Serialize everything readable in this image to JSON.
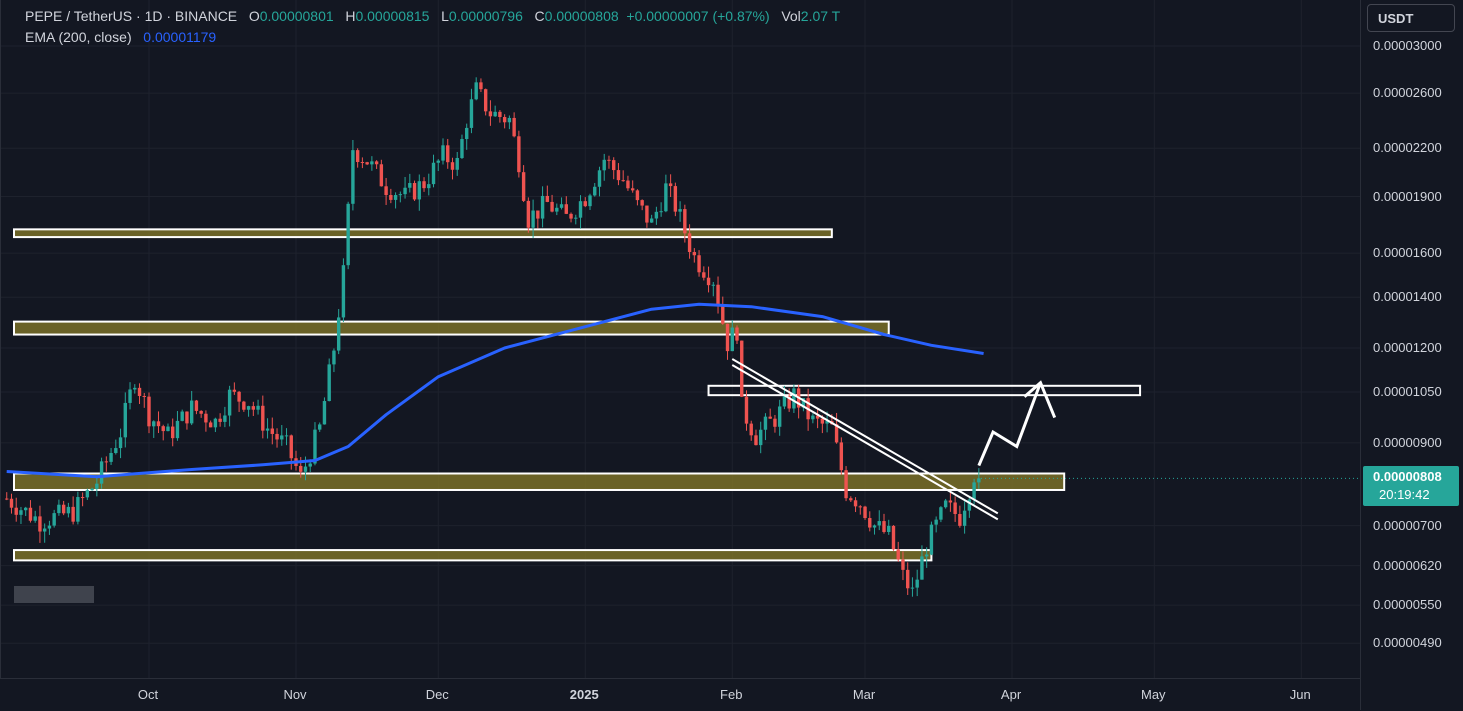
{
  "legend": {
    "symbol": "PEPE / TetherUS · 1D · BINANCE",
    "open_label": "O",
    "open": "0.00000801",
    "high_label": "H",
    "high": "0.00000815",
    "low_label": "L",
    "low": "0.00000796",
    "close_label": "C",
    "close": "0.00000808",
    "change": "+0.00000007 (+0.87%)",
    "vol_label": "Vol",
    "vol": "2.07 T",
    "ema_label": "EMA (200, close)",
    "ema_value": "0.00001179"
  },
  "currency_button": "USDT",
  "price_badge": {
    "price": "0.00000808",
    "countdown": "20:19:42"
  },
  "colors": {
    "background": "#131722",
    "up": "#26a69a",
    "down": "#ef5350",
    "ema": "#2962ff",
    "zone_fill": "#7a7028",
    "zone_border": "#ffffff"
  },
  "chart_data": {
    "type": "candlestick",
    "y_scale": "log",
    "ylim": [
      4.3e-06,
      3.1e-06
    ],
    "y_ticks": [
      "0.00003000",
      "0.00002600",
      "0.00002200",
      "0.00001900",
      "0.00001600",
      "0.00001400",
      "0.00001200",
      "0.00001050",
      "0.00000900",
      "0.00000700",
      "0.00000620",
      "0.00000550",
      "0.00000490"
    ],
    "x_ticks": [
      {
        "label": "Oct",
        "date": "2024-10-01"
      },
      {
        "label": "Nov",
        "date": "2024-11-01"
      },
      {
        "label": "Dec",
        "date": "2024-12-01"
      },
      {
        "label": "2025",
        "date": "2025-01-01",
        "bold": true
      },
      {
        "label": "Feb",
        "date": "2025-02-01"
      },
      {
        "label": "Mar",
        "date": "2025-03-01"
      },
      {
        "label": "Apr",
        "date": "2025-04-01"
      },
      {
        "label": "May",
        "date": "2025-05-01"
      },
      {
        "label": "Jun",
        "date": "2025-06-01"
      }
    ],
    "x_range": [
      "2024-09-01",
      "2025-06-10"
    ],
    "close_path": [
      [
        "2024-09-01",
        7.6e-06
      ],
      [
        "2024-09-08",
        7.1e-06
      ],
      [
        "2024-09-15",
        7.3e-06
      ],
      [
        "2024-09-20",
        8e-06
      ],
      [
        "2024-09-25",
        9.3e-06
      ],
      [
        "2024-09-28",
        1.1e-05
      ],
      [
        "2024-10-01",
        9.8e-06
      ],
      [
        "2024-10-05",
        9.2e-06
      ],
      [
        "2024-10-10",
        1e-05
      ],
      [
        "2024-10-15",
        9.6e-06
      ],
      [
        "2024-10-18",
        1.04e-05
      ],
      [
        "2024-10-22",
        1.02e-05
      ],
      [
        "2024-10-26",
        9.4e-06
      ],
      [
        "2024-10-30",
        8.9e-06
      ],
      [
        "2024-11-02",
        8.1e-06
      ],
      [
        "2024-11-06",
        9.4e-06
      ],
      [
        "2024-11-09",
        1.2e-05
      ],
      [
        "2024-11-11",
        1.5e-05
      ],
      [
        "2024-11-13",
        2.2e-05
      ],
      [
        "2024-11-16",
        2.12e-05
      ],
      [
        "2024-11-20",
        1.96e-05
      ],
      [
        "2024-11-24",
        1.9e-05
      ],
      [
        "2024-11-28",
        1.98e-05
      ],
      [
        "2024-12-02",
        2.15e-05
      ],
      [
        "2024-12-05",
        2.1e-05
      ],
      [
        "2024-12-07",
        2.4e-05
      ],
      [
        "2024-12-09",
        2.62e-05
      ],
      [
        "2024-12-12",
        2.45e-05
      ],
      [
        "2024-12-16",
        2.4e-05
      ],
      [
        "2024-12-18",
        2.12e-05
      ],
      [
        "2024-12-20",
        1.78e-05
      ],
      [
        "2024-12-24",
        1.86e-05
      ],
      [
        "2024-12-28",
        1.78e-05
      ],
      [
        "2025-01-01",
        1.9e-05
      ],
      [
        "2025-01-05",
        2.13e-05
      ],
      [
        "2025-01-09",
        2e-05
      ],
      [
        "2025-01-12",
        1.85e-05
      ],
      [
        "2025-01-15",
        1.75e-05
      ],
      [
        "2025-01-18",
        1.95e-05
      ],
      [
        "2025-01-20",
        1.85e-05
      ],
      [
        "2025-01-24",
        1.58e-05
      ],
      [
        "2025-01-28",
        1.48e-05
      ],
      [
        "2025-01-31",
        1.22e-05
      ],
      [
        "2025-02-02",
        1.27e-05
      ],
      [
        "2025-02-03",
        1e-05
      ],
      [
        "2025-02-06",
        9.2e-06
      ],
      [
        "2025-02-10",
        9.7e-06
      ],
      [
        "2025-02-14",
        1.04e-05
      ],
      [
        "2025-02-18",
        9.6e-06
      ],
      [
        "2025-02-22",
        9.4e-06
      ],
      [
        "2025-02-25",
        7.8e-06
      ],
      [
        "2025-02-28",
        7.5e-06
      ],
      [
        "2025-03-03",
        7e-06
      ],
      [
        "2025-03-06",
        6.8e-06
      ],
      [
        "2025-03-09",
        6e-06
      ],
      [
        "2025-03-11",
        5.7e-06
      ],
      [
        "2025-03-14",
        6.6e-06
      ],
      [
        "2025-03-18",
        7.4e-06
      ],
      [
        "2025-03-21",
        7.2e-06
      ],
      [
        "2025-03-24",
        8.2e-06
      ],
      [
        "2025-03-25",
        8.08e-06
      ]
    ],
    "ema_200": [
      [
        "2024-09-01",
        8.25e-06
      ],
      [
        "2024-09-20",
        8.12e-06
      ],
      [
        "2024-10-10",
        8.3e-06
      ],
      [
        "2024-10-25",
        8.42e-06
      ],
      [
        "2024-11-05",
        8.53e-06
      ],
      [
        "2024-11-12",
        8.9e-06
      ],
      [
        "2024-11-20",
        9.8e-06
      ],
      [
        "2024-12-01",
        1.1e-05
      ],
      [
        "2024-12-15",
        1.2e-05
      ],
      [
        "2025-01-01",
        1.28e-05
      ],
      [
        "2025-01-15",
        1.35e-05
      ],
      [
        "2025-01-25",
        1.37e-05
      ],
      [
        "2025-02-05",
        1.36e-05
      ],
      [
        "2025-02-20",
        1.32e-05
      ],
      [
        "2025-03-05",
        1.25e-05
      ],
      [
        "2025-03-15",
        1.21e-05
      ],
      [
        "2025-03-26",
        1.18e-05
      ]
    ],
    "zones": [
      {
        "x0": "2024-09-01",
        "x1": "2025-02-22",
        "y_top": 1.72e-05,
        "y_bottom": 1.68e-05,
        "filled": true
      },
      {
        "x0": "2024-09-01",
        "x1": "2025-03-06",
        "y_top": 1.3e-05,
        "y_bottom": 1.25e-05,
        "filled": true
      },
      {
        "x0": "2025-01-27",
        "x1": "2025-04-28",
        "y_top": 1.07e-05,
        "y_bottom": 1.04e-05,
        "filled": false
      },
      {
        "x0": "2024-09-01",
        "x1": "2025-04-12",
        "y_top": 8.2e-06,
        "y_bottom": 7.8e-06,
        "filled": true
      },
      {
        "x0": "2024-09-01",
        "x1": "2025-03-15",
        "y_top": 6.5e-06,
        "y_bottom": 6.3e-06,
        "filled": true
      }
    ],
    "trendline": {
      "from": [
        "2025-02-01",
        1.15e-05
      ],
      "to": [
        "2025-03-29",
        7.2e-06
      ]
    },
    "projection_arrow": [
      [
        "2025-03-25",
        8.4e-06
      ],
      [
        "2025-03-28",
        9.3e-06
      ],
      [
        "2025-04-02",
        8.9e-06
      ],
      [
        "2025-04-07",
        1.08e-05
      ],
      [
        "2025-04-10",
        1.02e-05
      ]
    ],
    "last_price": 8.08e-06
  }
}
